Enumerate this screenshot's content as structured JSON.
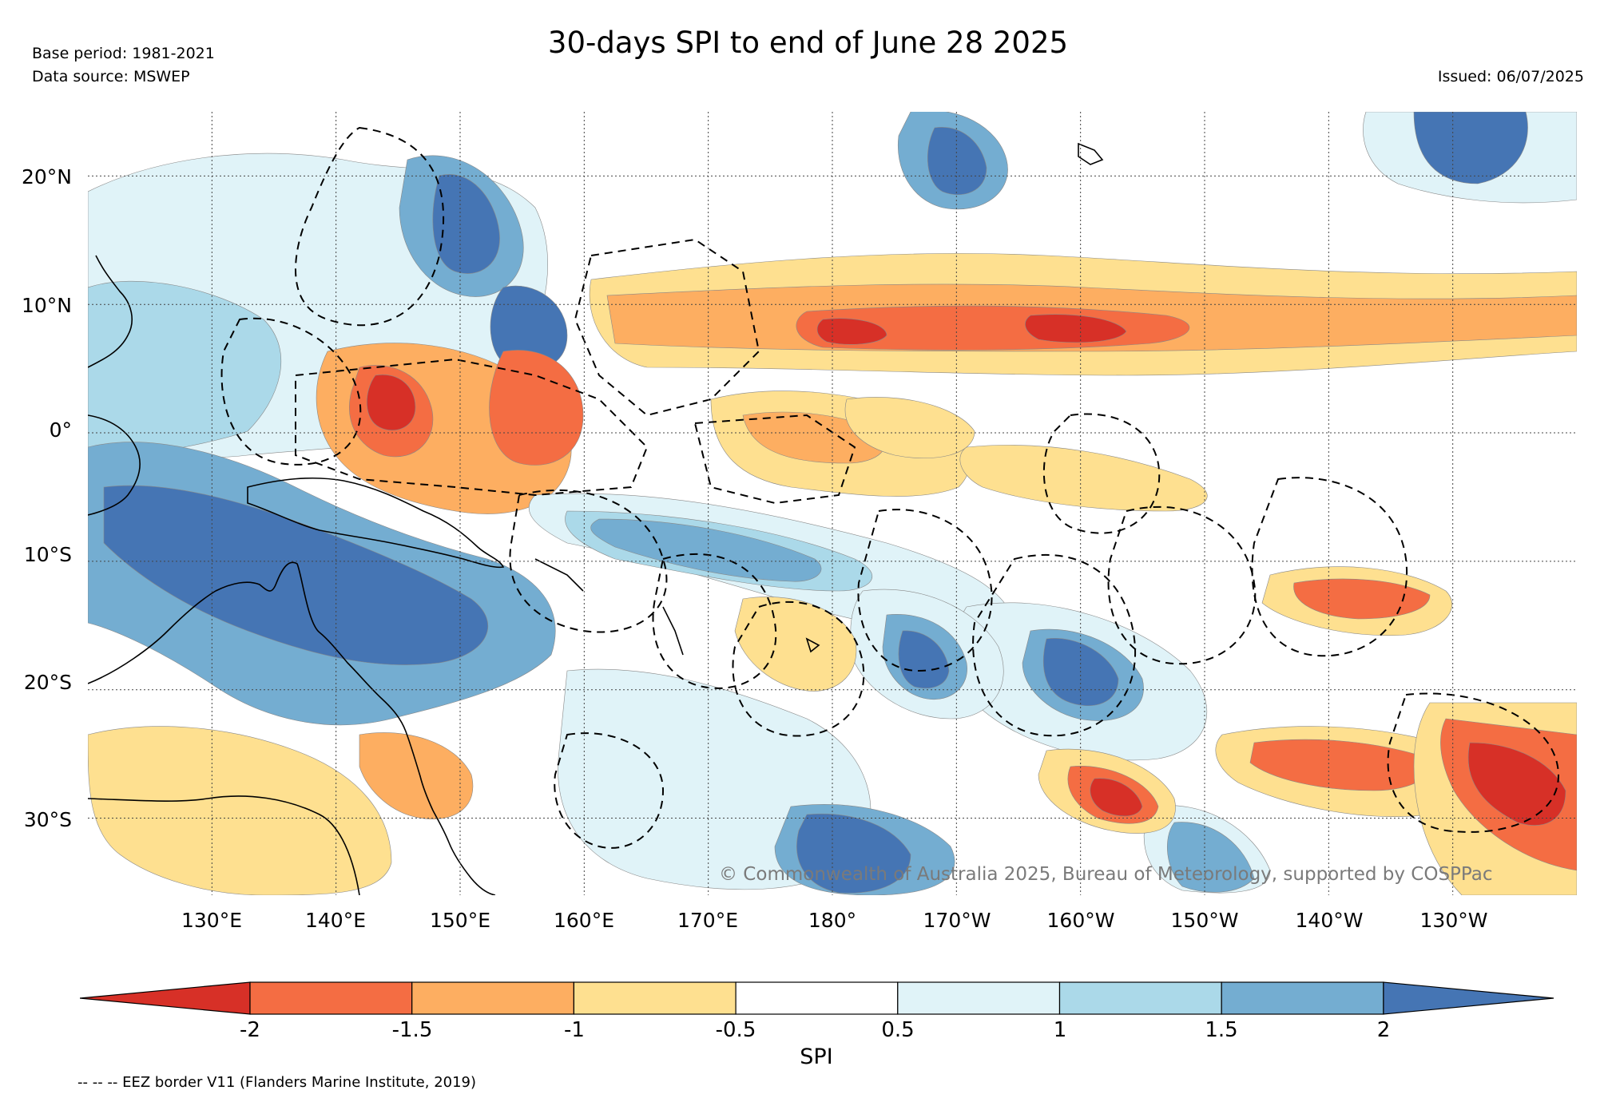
{
  "title": "30-days SPI to end of June 28 2025",
  "base_period": "Base period: 1981-2021",
  "data_source": "Data source: MSWEP",
  "issued": "Issued: 06/07/2025",
  "copyright": "© Commonwealth of Australia 2025, Bureau of Meteorology, supported by COSPPac",
  "eez_note": "-- -- -- EEZ border V11 (Flanders Marine Institute, 2019)",
  "colorbar_label": "SPI",
  "lat_labels": [
    "20°N",
    "10°N",
    "0°",
    "10°S",
    "20°S",
    "30°S"
  ],
  "lon_labels": [
    "130°E",
    "140°E",
    "150°E",
    "160°E",
    "170°E",
    "180°",
    "170°W",
    "160°W",
    "150°W",
    "140°W",
    "130°W"
  ],
  "colorbar": {
    "ticks": [
      "-2",
      "-1.5",
      "-1",
      "-0.5",
      "0.5",
      "1",
      "1.5",
      "2"
    ],
    "colors": [
      "#d73027",
      "#f46d43",
      "#fdae61",
      "#fee090",
      "#ffffff",
      "#e0f3f8",
      "#abd9e9",
      "#74add1",
      "#4575b4"
    ]
  },
  "map_colors": {
    "very_dry": "#d73027",
    "dry": "#f46d43",
    "mod_dry": "#fdae61",
    "mild_dry": "#fee090",
    "mild_wet": "#e0f3f8",
    "mod_wet": "#abd9e9",
    "wet": "#74add1",
    "very_wet": "#4575b4"
  }
}
